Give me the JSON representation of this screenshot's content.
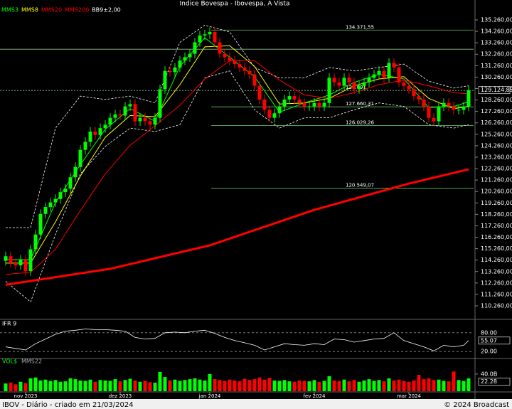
{
  "chart_data": [
    {
      "type": "candlestick",
      "title": "Indice Bovespa - Ibovespa, A Vista",
      "up_color": "#00ff00",
      "down_color": "#ff0000",
      "xlim": [
        -1,
        94
      ],
      "ylim": [
        109140,
        136255
      ],
      "xticks": [
        {
          "value": 4,
          "label": "nov 2023"
        },
        {
          "value": 23,
          "label": "dez 2023"
        },
        {
          "value": 41,
          "label": "jan 2024"
        },
        {
          "value": 62,
          "label": "fev 2024"
        },
        {
          "value": 81,
          "label": "mar 2024"
        }
      ],
      "yticks": [
        {
          "value": 135260,
          "label": "135.260,00"
        },
        {
          "value": 134260,
          "label": "134.260,00"
        },
        {
          "value": 133260,
          "label": "133.260,00"
        },
        {
          "value": 132260,
          "label": "132.260,00"
        },
        {
          "value": 131260,
          "label": "131.260,00"
        },
        {
          "value": 130260,
          "label": "130.260,00"
        },
        {
          "value": 129260,
          "label": "129.260,00"
        },
        {
          "value": 128260,
          "label": "128.260,00"
        },
        {
          "value": 127260,
          "label": "127.260,00"
        },
        {
          "value": 126260,
          "label": "126.260,00"
        },
        {
          "value": 125260,
          "label": "125.260,00"
        },
        {
          "value": 124260,
          "label": "124.260,00"
        },
        {
          "value": 123260,
          "label": "123.260,00"
        },
        {
          "value": 122260,
          "label": "122.260,00"
        },
        {
          "value": 121260,
          "label": "121.260,00"
        },
        {
          "value": 120260,
          "label": "120.260,00"
        },
        {
          "value": 119260,
          "label": "119.260,00"
        },
        {
          "value": 118260,
          "label": "118.260,00"
        },
        {
          "value": 117260,
          "label": "117.260,00"
        },
        {
          "value": 116260,
          "label": "116.260,00"
        },
        {
          "value": 115260,
          "label": "115.260,00"
        },
        {
          "value": 114260,
          "label": "114.260,00"
        },
        {
          "value": 113260,
          "label": "113.260,00"
        },
        {
          "value": 112260,
          "label": "112.260,00"
        },
        {
          "value": 111260,
          "label": "111.260,00"
        },
        {
          "value": 110260,
          "label": "110.260,00"
        }
      ],
      "levels": [
        {
          "value": 134371.55,
          "label": "134.371,55"
        },
        {
          "value": 132700
        },
        {
          "value": 129091,
          "label": "129.091,",
          "dashed": true
        },
        {
          "value": 127660.31,
          "label": "127.660,31"
        },
        {
          "value": 126029.26,
          "label": "126.029,26"
        },
        {
          "value": 120549.07,
          "label": "120.549,07"
        }
      ],
      "last": {
        "value": 129124.83,
        "label": "129.124,83"
      },
      "open": [
        114200,
        114600,
        114000,
        113800,
        114300,
        113300,
        115200,
        116500,
        118300,
        118900,
        119300,
        119600,
        120200,
        120500,
        121500,
        122400,
        123900,
        124600,
        125500,
        125200,
        125800,
        126100,
        126700,
        127000,
        126900,
        127700,
        127900,
        126400,
        126700,
        126400,
        126100,
        126700,
        129200,
        130800,
        130700,
        131100,
        131700,
        132000,
        132300,
        133300,
        133900,
        134000,
        134200,
        133300,
        132300,
        132000,
        131700,
        131400,
        131100,
        130800,
        130500,
        129500,
        128300,
        127400,
        126700,
        127100,
        127700,
        128300,
        128600,
        128300,
        128000,
        127700,
        127700,
        128000,
        127700,
        128000,
        130200,
        129800,
        129500,
        130200,
        129800,
        129200,
        129500,
        129800,
        130200,
        130500,
        130800,
        130200,
        131500,
        131100,
        129800,
        129500,
        129200,
        128600,
        128300,
        127700,
        126700,
        126400,
        127700,
        128000,
        127700,
        127400,
        127400,
        127700
      ],
      "high": [
        115000,
        115000,
        114400,
        114700,
        114700,
        115600,
        116900,
        118700,
        119300,
        119700,
        120000,
        120600,
        120900,
        121900,
        122800,
        124300,
        125000,
        125900,
        125900,
        126200,
        126500,
        127100,
        127400,
        127400,
        128100,
        128300,
        128300,
        127100,
        127100,
        126800,
        127100,
        129600,
        131200,
        131200,
        131500,
        132100,
        132400,
        132700,
        133700,
        134300,
        134400,
        134600,
        134600,
        133700,
        132700,
        132400,
        132100,
        131800,
        131500,
        131200,
        130900,
        129900,
        128700,
        127800,
        127500,
        128100,
        128700,
        129000,
        129000,
        128700,
        128400,
        128100,
        128400,
        128400,
        128400,
        130600,
        130600,
        130200,
        130600,
        130600,
        130200,
        129900,
        130200,
        130600,
        130900,
        131200,
        131200,
        131900,
        131900,
        131500,
        130200,
        129900,
        129600,
        129000,
        128700,
        128100,
        127100,
        128100,
        128400,
        128400,
        128100,
        127800,
        128100,
        129520
      ],
      "low": [
        113800,
        113600,
        113400,
        113400,
        112900,
        112900,
        114800,
        116100,
        117900,
        118500,
        118900,
        119200,
        119800,
        120100,
        121100,
        122000,
        123500,
        124200,
        124800,
        124800,
        125400,
        125700,
        126300,
        126500,
        126500,
        127300,
        126000,
        126000,
        126000,
        125700,
        125700,
        126300,
        128800,
        130300,
        130300,
        130700,
        131300,
        131600,
        131900,
        132900,
        133500,
        133600,
        132900,
        131900,
        131600,
        131300,
        131000,
        130700,
        130400,
        130100,
        129100,
        127900,
        127000,
        126300,
        126300,
        126700,
        127300,
        127900,
        127900,
        127600,
        127300,
        127300,
        127300,
        127300,
        127300,
        127600,
        129400,
        129100,
        129100,
        129400,
        128800,
        128800,
        129100,
        129400,
        129800,
        130100,
        129800,
        129800,
        130700,
        129400,
        129100,
        128800,
        128200,
        127900,
        127300,
        126300,
        126000,
        126000,
        127300,
        127300,
        127000,
        127000,
        127000,
        127300
      ],
      "close": [
        114600,
        114000,
        113800,
        114300,
        113300,
        115200,
        116500,
        118300,
        118900,
        119300,
        119600,
        120200,
        120500,
        121500,
        122400,
        123900,
        124600,
        125500,
        125200,
        125800,
        126100,
        126700,
        127000,
        126900,
        127700,
        127900,
        126400,
        126700,
        126400,
        126100,
        126700,
        129200,
        130800,
        130700,
        131100,
        131700,
        132000,
        132300,
        133300,
        133900,
        134000,
        134200,
        133300,
        132300,
        132000,
        131700,
        131400,
        131100,
        130800,
        130500,
        129500,
        128300,
        127400,
        126700,
        127100,
        127700,
        128300,
        128600,
        128300,
        128000,
        127700,
        127700,
        128000,
        127700,
        128000,
        130200,
        129800,
        129500,
        130200,
        129800,
        129200,
        129500,
        129800,
        130200,
        130500,
        130800,
        130200,
        131500,
        131100,
        129800,
        129500,
        129200,
        128600,
        128300,
        127700,
        126700,
        126400,
        127700,
        128000,
        127700,
        127400,
        127400,
        127700,
        129120
      ],
      "lines": [
        {
          "name": "MMS3",
          "color": "#00ff00",
          "width": 1,
          "x": [
            0,
            5,
            10,
            15,
            20,
            25,
            30,
            35,
            40,
            45,
            50,
            55,
            60,
            65,
            70,
            75,
            80,
            85,
            90,
            93
          ],
          "values": [
            114300,
            114300,
            119300,
            122600,
            125700,
            127500,
            126400,
            131200,
            133700,
            132000,
            130300,
            127200,
            128000,
            128700,
            129800,
            130500,
            130100,
            127600,
            127700,
            128100
          ]
        },
        {
          "name": "MMS8",
          "color": "#ffff00",
          "width": 1,
          "x": [
            0,
            5,
            10,
            15,
            20,
            25,
            30,
            35,
            40,
            45,
            50,
            55,
            60,
            65,
            70,
            75,
            80,
            85,
            90,
            93
          ],
          "values": [
            114000,
            114000,
            117600,
            121600,
            125000,
            126900,
            126800,
            129600,
            132900,
            133000,
            131200,
            127900,
            128000,
            128400,
            129500,
            130100,
            130300,
            128400,
            127500,
            127700
          ]
        },
        {
          "name": "MMS20",
          "color": "#ff0000",
          "width": 1,
          "x": [
            0,
            5,
            10,
            15,
            20,
            25,
            30,
            35,
            40,
            45,
            50,
            55,
            60,
            65,
            70,
            75,
            80,
            85,
            90,
            93
          ],
          "values": [
            113000,
            113200,
            115200,
            118600,
            121800,
            124300,
            126000,
            127800,
            130100,
            131700,
            131700,
            130000,
            128700,
            128400,
            128900,
            129600,
            130000,
            129500,
            128900,
            128800
          ]
        },
        {
          "name": "MMS200",
          "color": "#ff0000",
          "width": 3,
          "x": [
            0,
            21,
            41,
            62,
            81,
            93
          ],
          "values": [
            112100,
            113500,
            115550,
            118650,
            120950,
            122200
          ]
        }
      ],
      "bands": {
        "name": "BB9±2,00",
        "color": "#ffffff",
        "x": [
          0,
          5,
          10,
          15,
          20,
          25,
          30,
          35,
          40,
          45,
          50,
          55,
          60,
          65,
          70,
          75,
          80,
          85,
          90,
          93
        ],
        "upper": [
          117100,
          117100,
          125800,
          128600,
          128300,
          128600,
          128000,
          133300,
          134800,
          134200,
          131100,
          130200,
          130200,
          131100,
          130800,
          131100,
          131400,
          129900,
          129300,
          129500
        ],
        "lower": [
          112400,
          110600,
          116500,
          121800,
          124200,
          125800,
          125500,
          126100,
          130200,
          130800,
          127400,
          125800,
          126700,
          126700,
          127400,
          128000,
          127700,
          126100,
          125800,
          126100
        ]
      }
    },
    {
      "type": "line",
      "title": "IFR 9",
      "color": "#ffffff",
      "ylim": [
        0,
        100
      ],
      "yticks": [
        {
          "value": 80,
          "label": "80.00"
        },
        {
          "value": 20,
          "label": "20.00"
        }
      ],
      "last": {
        "value": 55.07,
        "label": "55.07"
      },
      "x": [
        0,
        2,
        4,
        6,
        8,
        10,
        12,
        14,
        16,
        18,
        20,
        22,
        24,
        26,
        28,
        30,
        32,
        34,
        36,
        38,
        40,
        42,
        44,
        46,
        48,
        50,
        52,
        54,
        56,
        58,
        60,
        62,
        64,
        66,
        68,
        70,
        72,
        74,
        76,
        78,
        80,
        82,
        84,
        86,
        88,
        90,
        92,
        93
      ],
      "values": [
        35,
        30,
        25,
        45,
        60,
        75,
        85,
        88,
        92,
        90,
        90,
        88,
        85,
        65,
        60,
        62,
        80,
        82,
        80,
        85,
        88,
        78,
        65,
        55,
        48,
        40,
        25,
        35,
        45,
        42,
        40,
        45,
        42,
        60,
        58,
        50,
        55,
        60,
        62,
        80,
        55,
        45,
        35,
        22,
        40,
        35,
        40,
        55.07
      ]
    },
    {
      "type": "volume",
      "title": "VOL$",
      "legend": "MMS22",
      "ylim": [
        0,
        58
      ],
      "yticks": [
        {
          "value": 40,
          "label": "40.0B"
        }
      ],
      "last": {
        "value": 22.28,
        "label": "22.28"
      },
      "values": [
        18,
        20,
        16,
        22,
        19,
        30,
        32,
        25,
        27,
        24,
        26,
        22,
        23,
        30,
        28,
        25,
        24,
        27,
        22,
        26,
        25,
        24,
        28,
        23,
        26,
        29,
        25,
        22,
        24,
        21,
        20,
        45,
        33,
        25,
        27,
        24,
        26,
        28,
        30,
        27,
        25,
        40,
        28,
        26,
        24,
        27,
        25,
        23,
        29,
        26,
        28,
        32,
        27,
        31,
        25,
        24,
        26,
        23,
        22,
        25,
        24,
        23,
        26,
        22,
        24,
        35,
        25,
        24,
        27,
        23,
        26,
        22,
        25,
        28,
        24,
        26,
        23,
        30,
        25,
        27,
        24,
        22,
        25,
        38,
        28,
        30,
        26,
        27,
        24,
        23,
        46,
        26,
        24,
        30
      ]
    }
  ],
  "footer": {
    "left": "IBOV - Diário - criado em 21/03/2024",
    "right": "© 2024 Broadcast"
  }
}
